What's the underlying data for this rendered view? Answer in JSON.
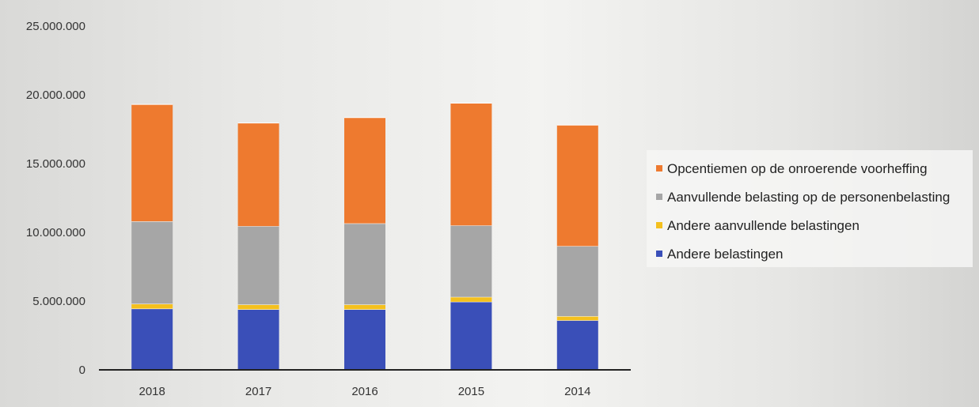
{
  "chart_data": {
    "type": "bar",
    "stacked": true,
    "categories": [
      "2018",
      "2017",
      "2016",
      "2015",
      "2014"
    ],
    "series": [
      {
        "name": "Andere belastingen",
        "color": "#3a4fb8",
        "values": [
          4450000,
          4400000,
          4400000,
          4950000,
          3600000
        ]
      },
      {
        "name": "Andere aanvullende belastingen",
        "color": "#f4c01e",
        "values": [
          350000,
          350000,
          350000,
          350000,
          300000
        ]
      },
      {
        "name": "Aanvullende belasting op de personenbelasting",
        "color": "#a6a6a6",
        "values": [
          6000000,
          5700000,
          5900000,
          5200000,
          5100000
        ]
      },
      {
        "name": "Opcentiemen op de onroerende voorheffing",
        "color": "#ee7a2f",
        "values": [
          8500000,
          7500000,
          7700000,
          8900000,
          8800000
        ]
      }
    ],
    "ylim": [
      0,
      25000000
    ],
    "yticks": [
      "0",
      "5.000.000",
      "10.000.000",
      "15.000.000",
      "20.000.000",
      "25.000.000"
    ],
    "legend_position": "right",
    "legend_order": [
      "Opcentiemen op de onroerende voorheffing",
      "Aanvullende belasting op de personenbelasting",
      "Andere aanvullende belastingen",
      "Andere belastingen"
    ],
    "grid": false
  }
}
